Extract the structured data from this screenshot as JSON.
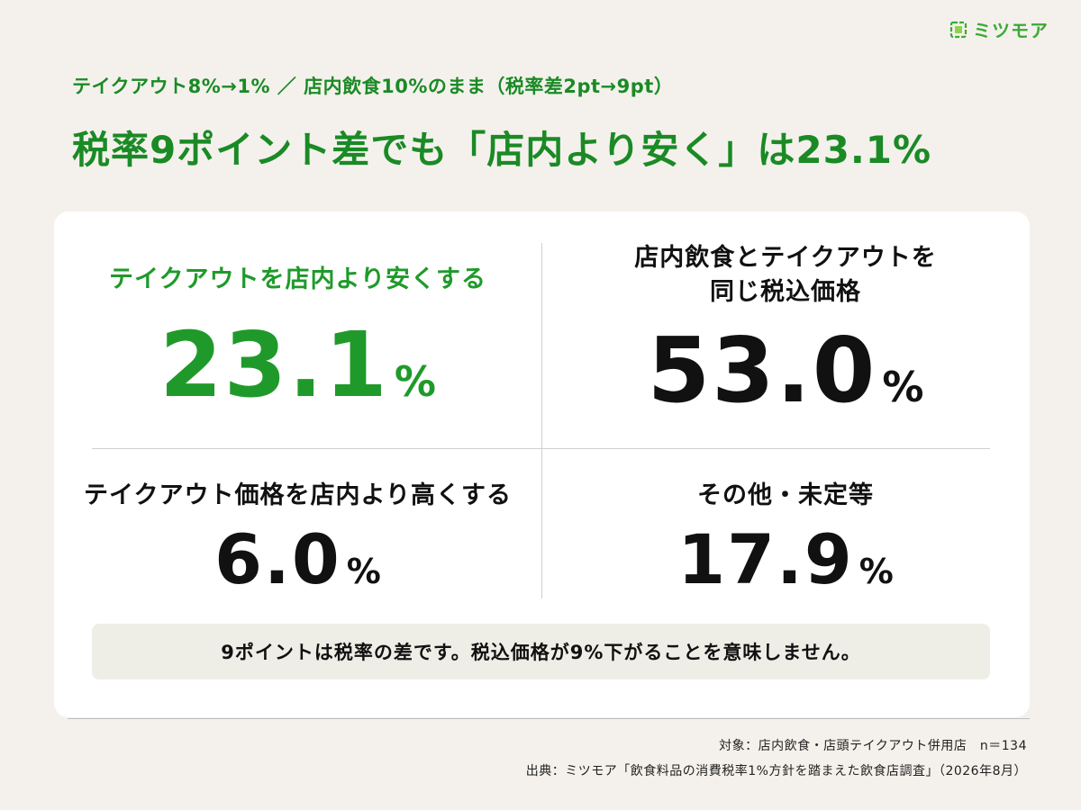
{
  "brand": {
    "name": "ミツモア",
    "color": "#3aaa35"
  },
  "header": {
    "subtitle": "テイクアウト8%→1% ／ 店内飲食10%のまま（税率差2pt→9pt）",
    "headline": "税率9ポイント差でも「店内より安く」は23.1%"
  },
  "results": [
    {
      "label": "テイクアウトを店内より安くする",
      "value": "23.1",
      "unit": "%",
      "color": "#1f9a2a"
    },
    {
      "label_line1": "店内飲食とテイクアウトを",
      "label_line2": "同じ税込価格",
      "value": "53.0",
      "unit": "%",
      "color": "#111111"
    },
    {
      "label": "テイクアウト価格を店内より高くする",
      "value": "6.0",
      "unit": "%",
      "color": "#111111"
    },
    {
      "label": "その他・未定等",
      "value": "17.9",
      "unit": "%",
      "color": "#111111"
    }
  ],
  "note": "9ポイントは税率の差です。税込価格が9%下がることを意味しません。",
  "footer": {
    "target": "対象：店内飲食・店頭テイクアウト併用店　n＝134",
    "source": "出典：ミツモア「飲食料品の消費税率1%方針を踏まえた飲食店調査」（2026年8月）"
  }
}
